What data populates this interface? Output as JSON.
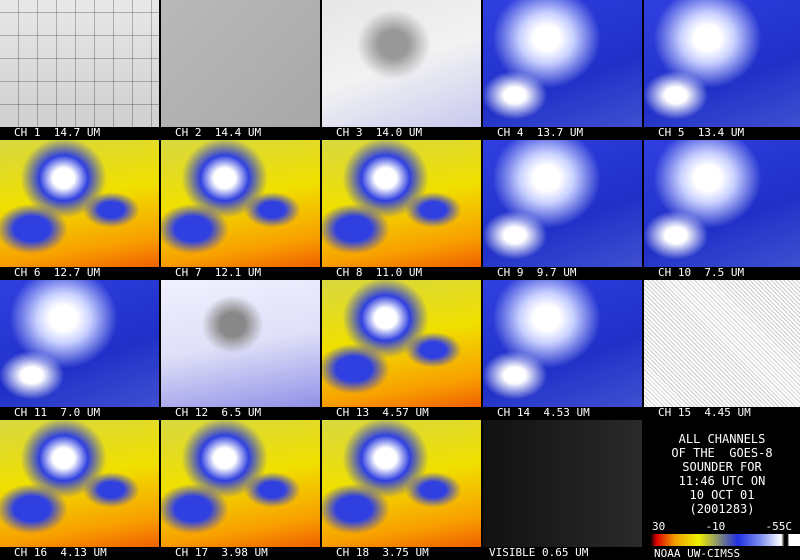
{
  "panels": [
    "CH 1  14.7 UM",
    "CH 2  14.4 UM",
    "CH 3  14.0 UM",
    "CH 4  13.7 UM",
    "CH 5  13.4 UM",
    "CH 6  12.7 UM",
    "CH 7  12.1 UM",
    "CH 8  11.0 UM",
    "CH 9  9.7 UM",
    "CH 10  7.5 UM",
    "CH 11  7.0 UM",
    "CH 12  6.5 UM",
    "CH 13  4.57 UM",
    "CH 14  4.53 UM",
    "CH 15  4.45 UM",
    "CH 16  4.13 UM",
    "CH 17  3.98 UM",
    "CH 18  3.75 UM",
    "VISIBLE 0.65 UM"
  ],
  "info": {
    "lines": [
      "ALL CHANNELS",
      "OF THE  GOES-8",
      "SOUNDER FOR",
      "11:46 UTC ON",
      "10 OCT 01",
      "(2001283)"
    ],
    "scale_labels": [
      "30",
      "-10",
      "-55C"
    ],
    "credit": "NOAA UW-CIMSS"
  }
}
